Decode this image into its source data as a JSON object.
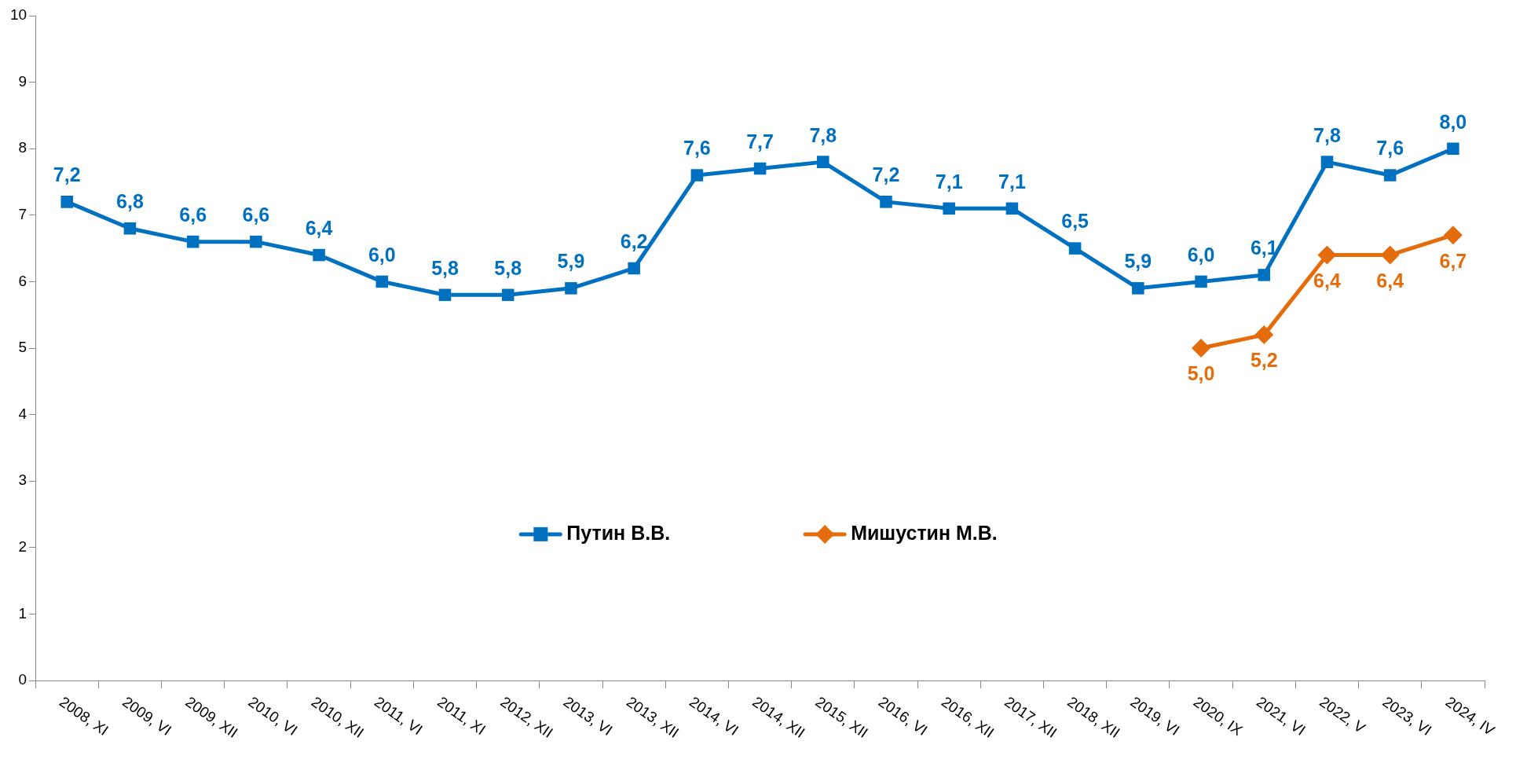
{
  "chart_data": {
    "type": "line",
    "categories": [
      "2008, XI",
      "2009, VI",
      "2009, XII",
      "2010, VI",
      "2010, XII",
      "2011, VI",
      "2011, XI",
      "2012, XII",
      "2013, VI",
      "2013, XII",
      "2014, VI",
      "2014, XII",
      "2015, XII",
      "2016, VI",
      "2016, XII",
      "2017, XII",
      "2018, XII",
      "2019, VI",
      "2020, IX",
      "2021, VI",
      "2022, V",
      "2023, VI",
      "2024, IV"
    ],
    "series": [
      {
        "name": "Путин В.В.",
        "color": "#0070c0",
        "marker": "square",
        "values": [
          7.2,
          6.8,
          6.6,
          6.6,
          6.4,
          6.0,
          5.8,
          5.8,
          5.9,
          6.2,
          7.6,
          7.7,
          7.8,
          7.2,
          7.1,
          7.1,
          6.5,
          5.9,
          6.0,
          6.1,
          7.8,
          7.6,
          8.0
        ],
        "value_labels": [
          "7,2",
          "6,8",
          "6,6",
          "6,6",
          "6,4",
          "6,0",
          "5,8",
          "5,8",
          "5,9",
          "6,2",
          "7,6",
          "7,7",
          "7,8",
          "7,2",
          "7,1",
          "7,1",
          "6,5",
          "5,9",
          "6,0",
          "6,1",
          "7,8",
          "7,6",
          "8,0"
        ]
      },
      {
        "name": "Мишустин М.В.",
        "color": "#e46c0a",
        "marker": "diamond",
        "values": [
          null,
          null,
          null,
          null,
          null,
          null,
          null,
          null,
          null,
          null,
          null,
          null,
          null,
          null,
          null,
          null,
          null,
          null,
          5.0,
          5.2,
          6.4,
          6.4,
          6.7
        ],
        "value_labels": [
          null,
          null,
          null,
          null,
          null,
          null,
          null,
          null,
          null,
          null,
          null,
          null,
          null,
          null,
          null,
          null,
          null,
          null,
          "5,0",
          "5,2",
          "6,4",
          "6,4",
          "6,7"
        ]
      }
    ],
    "ylim": [
      0,
      10
    ],
    "yticks": [
      0,
      1,
      2,
      3,
      4,
      5,
      6,
      7,
      8,
      9,
      10
    ],
    "grid": false,
    "legend": "center",
    "line_style": "solid"
  }
}
